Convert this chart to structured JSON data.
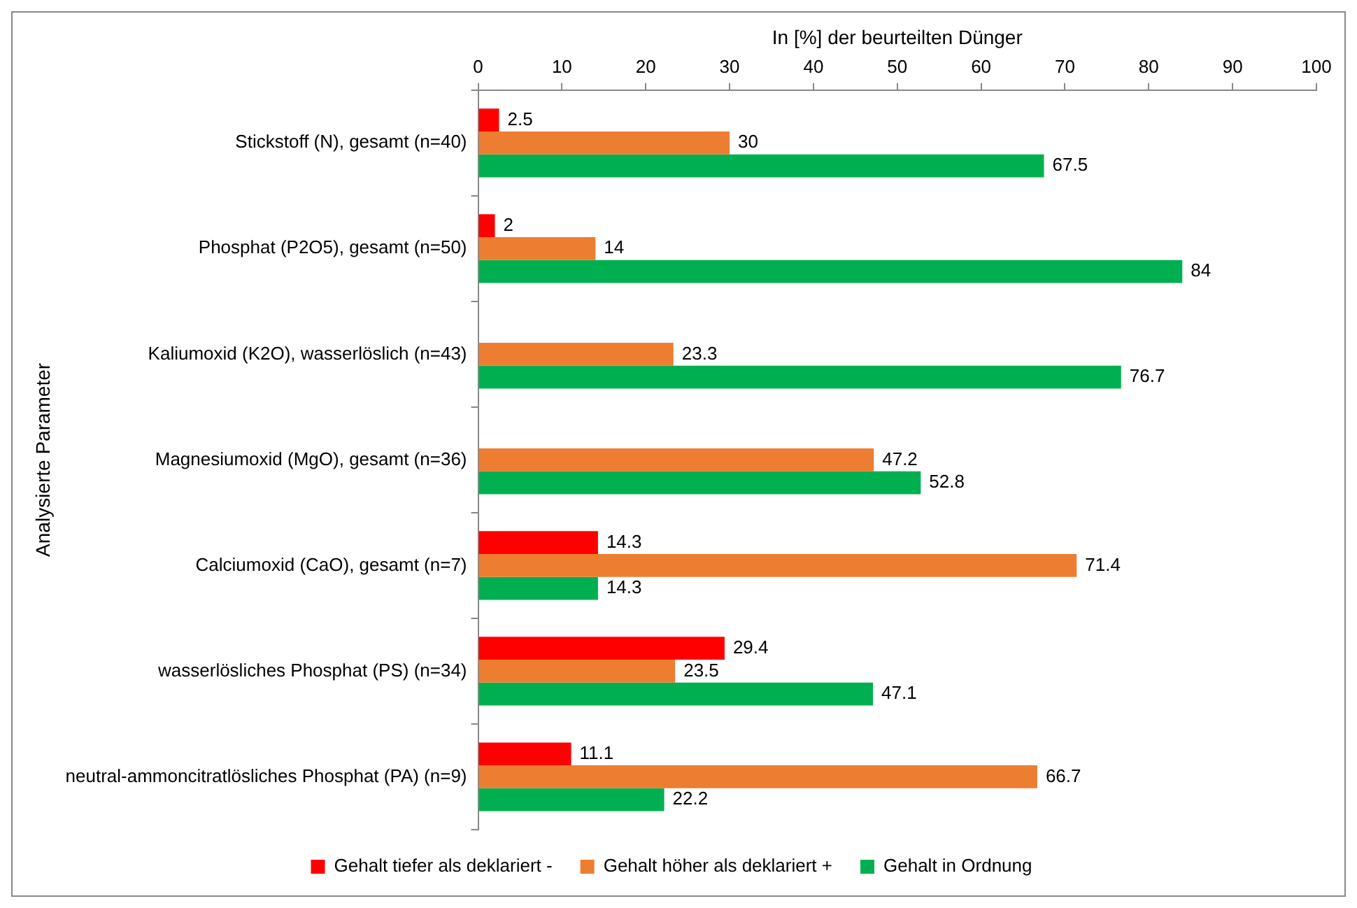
{
  "chart_data": {
    "type": "bar",
    "orientation": "horizontal",
    "xlabel": "In [%] der beurteilten Dünger",
    "ylabel": "Analysierte Parameter",
    "categories": [
      "Stickstoff (N), gesamt (n=40)",
      "Phosphat (P2O5), gesamt (n=50)",
      "Kaliumoxid (K2O), wasserlöslich (n=43)",
      "Magnesiumoxid (MgO), gesamt (n=36)",
      "Calciumoxid (CaO), gesamt (n=7)",
      "wasserlösliches Phosphat (PS) (n=34)",
      "neutral-ammoncitratlösliches Phosphat (PA) (n=9)"
    ],
    "series": [
      {
        "name": "Gehalt tiefer als deklariert -",
        "color": "#ff0000",
        "values": [
          2.5,
          2,
          null,
          null,
          14.3,
          29.4,
          11.1
        ]
      },
      {
        "name": "Gehalt höher als deklariert +",
        "color": "#ed7d31",
        "values": [
          30,
          14,
          23.3,
          47.2,
          71.4,
          23.5,
          66.7
        ]
      },
      {
        "name": "Gehalt in Ordnung",
        "color": "#00b050",
        "values": [
          67.5,
          84,
          76.7,
          52.8,
          14.3,
          47.1,
          22.2
        ]
      }
    ],
    "xlim": [
      0,
      100
    ],
    "xticks": [
      0,
      10,
      20,
      30,
      40,
      50,
      60,
      70,
      80,
      90,
      100
    ],
    "grid": false,
    "legend": "bottom",
    "data_labels": true
  }
}
